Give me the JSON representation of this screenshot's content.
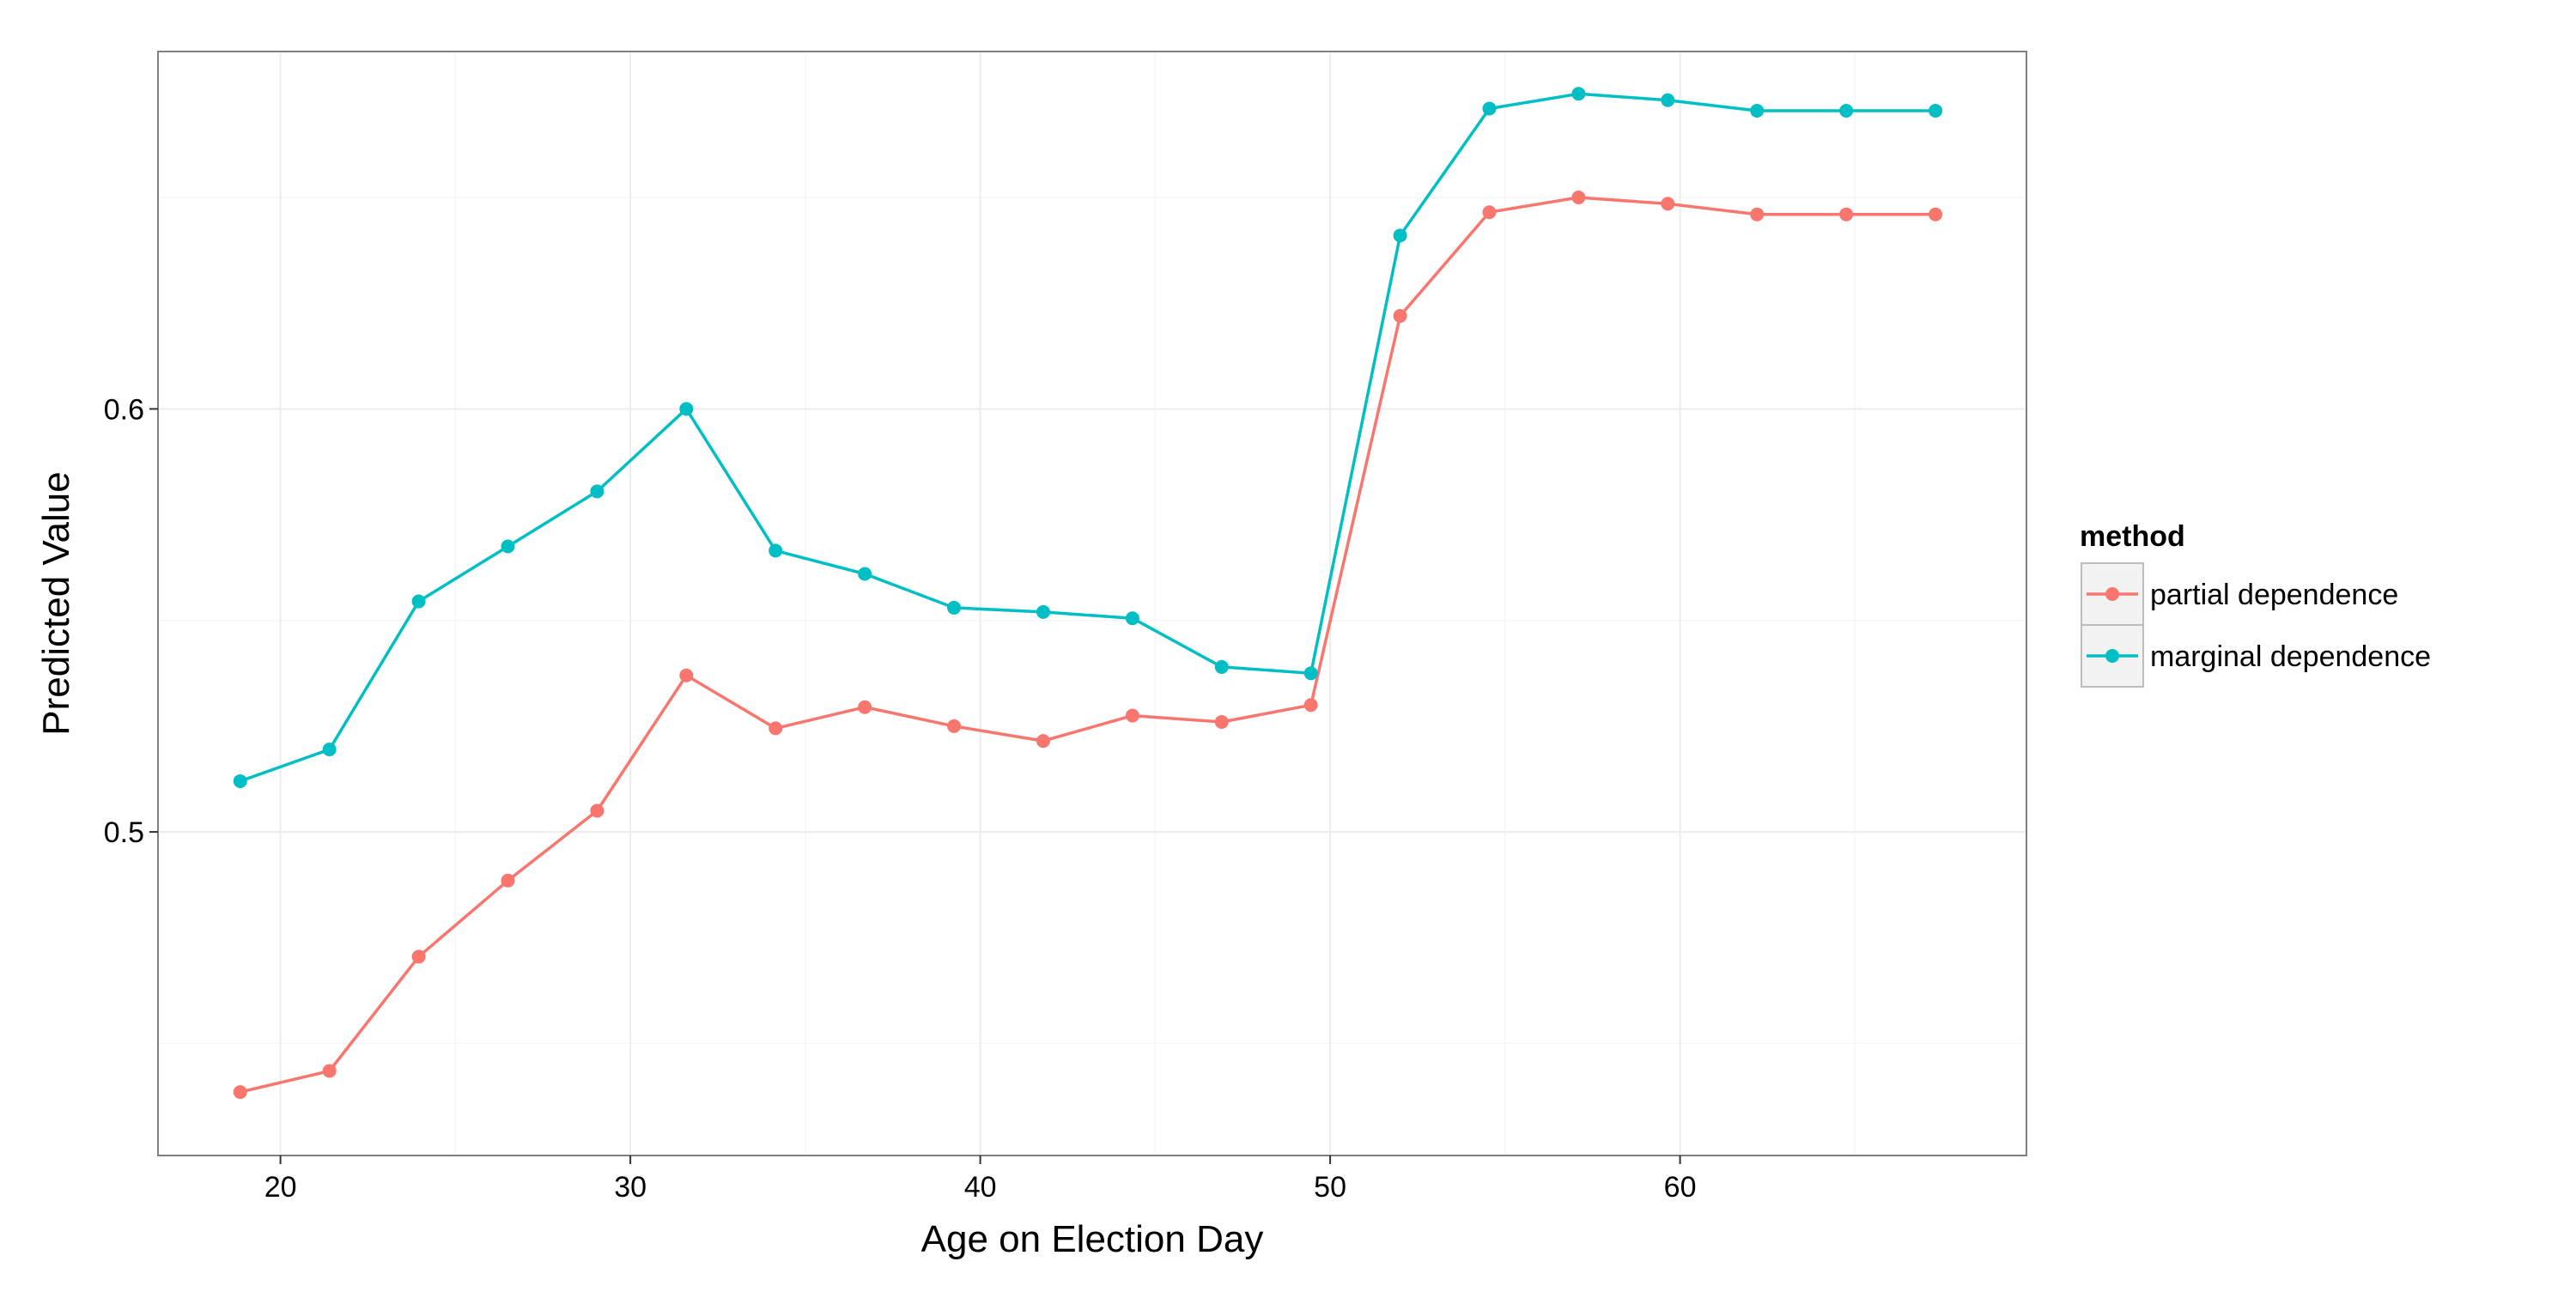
{
  "chart_data": {
    "type": "line",
    "title": "",
    "xlabel": "Age on Election Day",
    "ylabel": "Predicted Value",
    "xlim": [
      16.5,
      69.9
    ],
    "ylim": [
      0.4235,
      0.6845
    ],
    "x_ticks": [
      20,
      30,
      40,
      50,
      60
    ],
    "x_tick_labels": [
      "20",
      "30",
      "40",
      "50",
      "60"
    ],
    "x_minor_ticks": [
      25,
      35,
      45,
      55,
      65
    ],
    "y_ticks": [
      0.5,
      0.6
    ],
    "y_tick_labels": [
      "0.5",
      "0.6"
    ],
    "y_minor_ticks": [
      0.45,
      0.55,
      0.65
    ],
    "grid": true,
    "legend": {
      "title": "method",
      "position": "right",
      "entries": [
        "partial dependence",
        "marginal dependence"
      ]
    },
    "x": [
      18.85,
      21.4,
      23.95,
      26.5,
      29.05,
      31.6,
      34.15,
      36.7,
      39.25,
      41.8,
      44.35,
      46.9,
      49.45,
      52.0,
      54.55,
      57.1,
      59.65,
      62.2,
      64.75,
      67.3
    ],
    "series": [
      {
        "name": "partial dependence",
        "color": "#F8766D",
        "values": [
          0.4385,
          0.4435,
          0.4705,
          0.4885,
          0.505,
          0.537,
          0.5245,
          0.5295,
          0.525,
          0.5215,
          0.5275,
          0.526,
          0.53,
          0.622,
          0.6465,
          0.65,
          0.6485,
          0.646,
          0.646,
          0.646
        ]
      },
      {
        "name": "marginal dependence",
        "color": "#00BFC4",
        "values": [
          0.512,
          0.5195,
          0.5545,
          0.5675,
          0.5805,
          0.6,
          0.5665,
          0.561,
          0.553,
          0.552,
          0.5505,
          0.539,
          0.5375,
          0.641,
          0.671,
          0.6745,
          0.673,
          0.6705,
          0.6705,
          0.6705
        ]
      }
    ]
  },
  "colors": {
    "panel_border": "#7f7f7f",
    "grid_major": "#ececec",
    "grid_minor": "#f6f6f6",
    "axis_text": "#000000"
  }
}
